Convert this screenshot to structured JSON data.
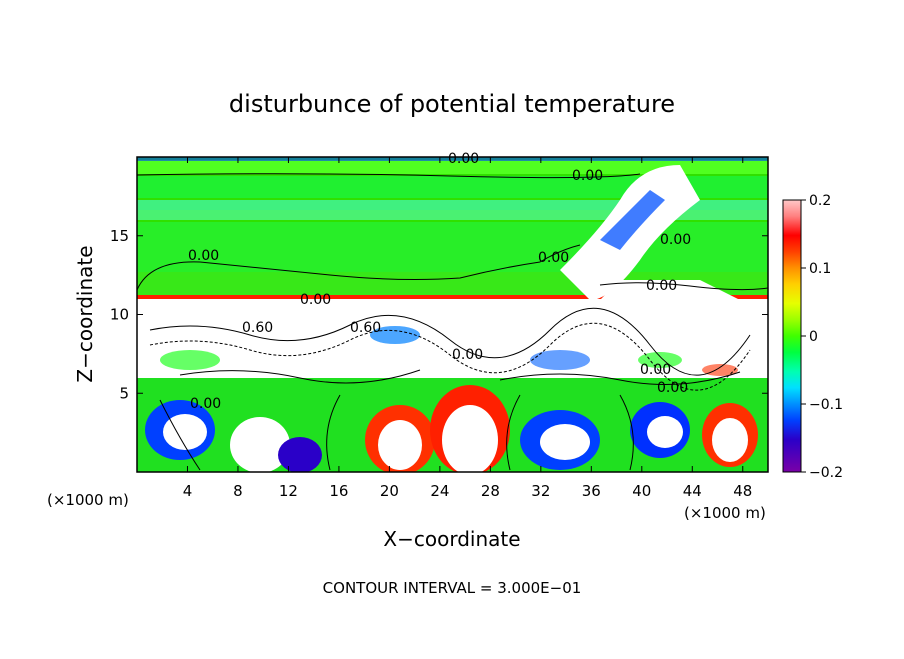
{
  "chart_data": {
    "type": "heatmap",
    "title": "disturbunce of potential temperature",
    "xlabel": "X−coordinate",
    "ylabel": "Z−coordinate",
    "x_unit_left": "(×1000 m)",
    "x_unit_right": "(×1000 m)",
    "xlim": [
      0,
      50
    ],
    "ylim": [
      0,
      20
    ],
    "x_ticks": [
      4,
      8,
      12,
      16,
      20,
      24,
      28,
      32,
      36,
      40,
      44,
      48
    ],
    "y_ticks": [
      5,
      10,
      15
    ],
    "colorbar": {
      "range": [
        -0.2,
        0.2
      ],
      "tick_values": [
        0.2,
        0.1,
        0,
        -0.1,
        -0.2
      ],
      "tick_labels": [
        "0.2",
        "0.1",
        "0",
        "−0.1",
        "−0.2"
      ],
      "colors": [
        "#7a00a8",
        "#2a00c8",
        "#0040ff",
        "#0090ff",
        "#00e0ff",
        "#00ffb0",
        "#00ff40",
        "#40ff00",
        "#9cff00",
        "#e6ff00",
        "#ffd000",
        "#ff9000",
        "#ff4000",
        "#ff0000",
        "#ff8080",
        "#ffc8c8"
      ]
    },
    "contour_labels": [
      "0.00",
      "0.00",
      "0.00",
      "0.00",
      "0.00",
      "0.00",
      "0.60",
      "0.60",
      "0.00",
      "0.00",
      "0.00",
      "0.00",
      "0.00"
    ],
    "annotation": "CONTOUR INTERVAL = 3.000E−01"
  }
}
